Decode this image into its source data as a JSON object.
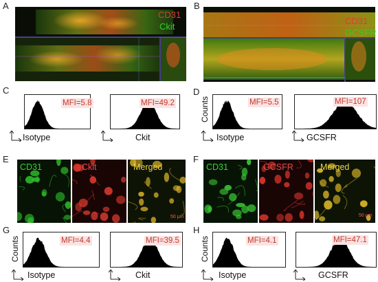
{
  "panels": {
    "A": {
      "letter": "A",
      "legend": [
        "CD31",
        "Ckit"
      ],
      "legend_colors": [
        "#e23b3b",
        "#31d02d"
      ]
    },
    "B": {
      "letter": "B",
      "legend": [
        "CD31",
        "GCSFR"
      ],
      "legend_colors": [
        "#e23b3b",
        "#31d02d"
      ]
    },
    "C": {
      "letter": "C",
      "hist1": {
        "mfi": "MFI=5.8",
        "xlabel": "Isotype"
      },
      "hist2": {
        "mfi": "MFI=49.2",
        "xlabel": "Ckit"
      }
    },
    "D": {
      "letter": "D",
      "ylabel": "Counts",
      "hist1": {
        "mfi": "MFI=5.5",
        "xlabel": "Isotype"
      },
      "hist2": {
        "mfi": "MFI=107",
        "xlabel": "GCSFR"
      }
    },
    "E": {
      "letter": "E",
      "cells": [
        "CD31",
        "Ckit",
        "Merged"
      ],
      "cell_colors": [
        "#36d136",
        "#e84c4c",
        "#f0d24a"
      ],
      "scale": "50 μm"
    },
    "F": {
      "letter": "F",
      "cells": [
        "CD31",
        "GCSFR",
        "Merged"
      ],
      "cell_colors": [
        "#36d136",
        "#e84c4c",
        "#f0d24a"
      ],
      "scale": "50 μm"
    },
    "G": {
      "letter": "G",
      "ylabel": "Counts",
      "hist1": {
        "mfi": "MFI=4.4",
        "xlabel": "Isotype"
      },
      "hist2": {
        "mfi": "MFI=39.5",
        "xlabel": "Ckit"
      }
    },
    "H": {
      "letter": "H",
      "ylabel": "Counts",
      "hist1": {
        "mfi": "MFI=4.1",
        "xlabel": "Isotype"
      },
      "hist2": {
        "mfi": "MFI=47.1",
        "xlabel": "GCSFR"
      }
    }
  },
  "colors": {
    "mfi_text": "#c0392b",
    "mfi_bg": "#fbe3e3",
    "histogram_fill": "#000000"
  }
}
